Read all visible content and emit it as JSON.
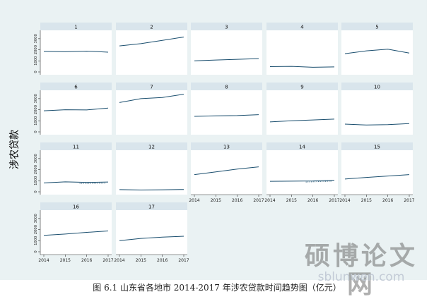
{
  "caption": "图 6.1  山东省各地市 2014-2017 年涉农贷款时间趋势图（亿元）",
  "watermark": {
    "text": "硕博论文网",
    "url": "sblunwen.com"
  },
  "colors": {
    "background": "#eaf2f3",
    "strip": "#d9e5ec",
    "panel": "#ffffff",
    "line": "#1a4e6e"
  },
  "chart_data": {
    "type": "line",
    "layout": "small-multiples",
    "ylabel": "涉农贷款",
    "xlabel": "",
    "x": [
      2014,
      2015,
      2016,
      2017
    ],
    "x_ticks": [
      "2014",
      "2015",
      "2016",
      "2017"
    ],
    "ylim": [
      0,
      3500
    ],
    "y_ticks": [
      "0",
      "1000",
      "2000",
      "3000"
    ],
    "grid": false,
    "panels": [
      {
        "label": "1",
        "values": [
          1850,
          1820,
          1880,
          1780
        ]
      },
      {
        "label": "2",
        "values": [
          2350,
          2550,
          2850,
          3150
        ]
      },
      {
        "label": "3",
        "values": [
          1000,
          1070,
          1140,
          1200
        ]
      },
      {
        "label": "4",
        "values": [
          480,
          500,
          420,
          450
        ]
      },
      {
        "label": "5",
        "values": [
          1650,
          1900,
          2050,
          1700
        ]
      },
      {
        "label": "6",
        "values": [
          1900,
          2000,
          1980,
          2150
        ]
      },
      {
        "label": "7",
        "values": [
          2650,
          3000,
          3100,
          3400
        ]
      },
      {
        "label": "8",
        "values": [
          1400,
          1450,
          1470,
          1550
        ]
      },
      {
        "label": "9",
        "values": [
          900,
          1000,
          1070,
          1150
        ]
      },
      {
        "label": "10",
        "values": [
          700,
          620,
          650,
          750
        ]
      },
      {
        "label": "11",
        "values": [
          800,
          900,
          850,
          880
        ],
        "dotted_tail": true
      },
      {
        "label": "12",
        "values": [
          200,
          170,
          180,
          210
        ]
      },
      {
        "label": "13",
        "values": [
          1550,
          1800,
          2050,
          2250
        ]
      },
      {
        "label": "14",
        "values": [
          950,
          960,
          980,
          1050
        ],
        "dotted_tail": true
      },
      {
        "label": "15",
        "values": [
          1150,
          1300,
          1420,
          1550
        ]
      },
      {
        "label": "16",
        "values": [
          1480,
          1600,
          1750,
          1880
        ]
      },
      {
        "label": "17",
        "values": [
          1000,
          1200,
          1320,
          1400
        ]
      }
    ]
  }
}
